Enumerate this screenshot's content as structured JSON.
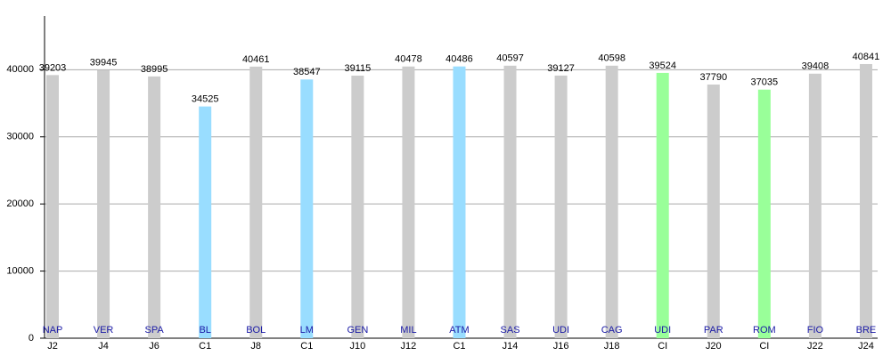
{
  "chart_data": {
    "type": "bar",
    "categories": [
      "J2",
      "J4",
      "J6",
      "C1",
      "J8",
      "C1",
      "J10",
      "J12",
      "C1",
      "J14",
      "J16",
      "J18",
      "CI",
      "J20",
      "CI",
      "J22",
      "J24"
    ],
    "bar_labels": [
      "NAP",
      "VER",
      "SPA",
      "BL",
      "BOL",
      "LM",
      "GEN",
      "MIL",
      "ATM",
      "SAS",
      "UDI",
      "CAG",
      "UDI",
      "PAR",
      "ROM",
      "FIO",
      "BRE"
    ],
    "values": [
      39203,
      39945,
      38995,
      34525,
      40461,
      38547,
      39115,
      40478,
      40486,
      40597,
      39127,
      40598,
      39524,
      37790,
      37035,
      39408,
      40841
    ],
    "colors": [
      "#cccccc",
      "#cccccc",
      "#cccccc",
      "#99ddff",
      "#cccccc",
      "#99ddff",
      "#cccccc",
      "#cccccc",
      "#99ddff",
      "#cccccc",
      "#cccccc",
      "#cccccc",
      "#99ff99",
      "#cccccc",
      "#99ff99",
      "#cccccc",
      "#cccccc"
    ],
    "ylim": [
      0,
      48000
    ],
    "yticks": [
      0,
      10000,
      20000,
      30000,
      40000
    ],
    "grid": true
  }
}
